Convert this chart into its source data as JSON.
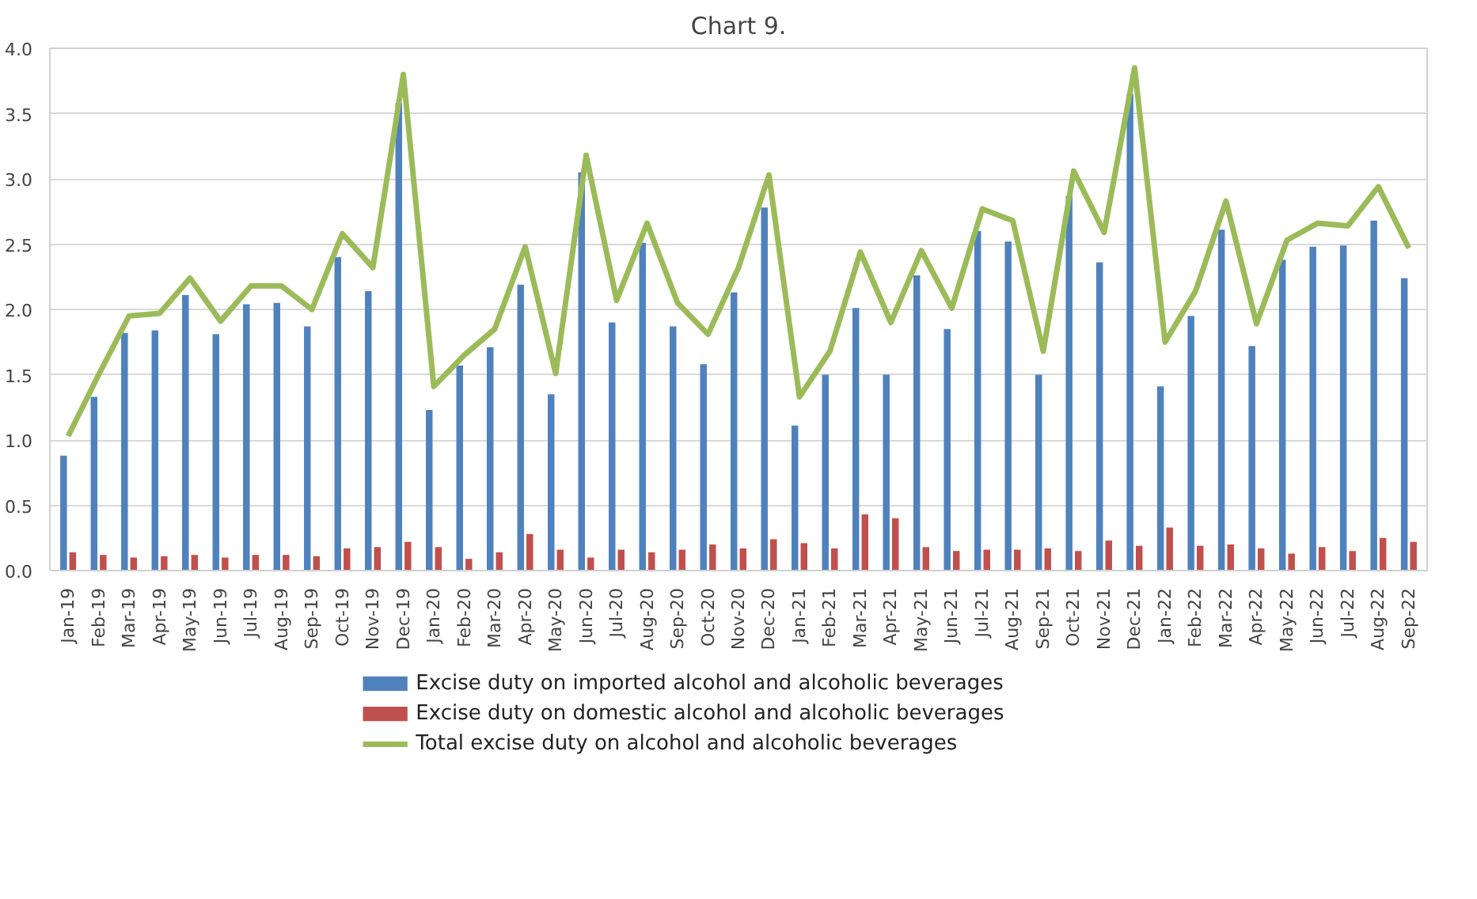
{
  "chart_data": {
    "type": "bar",
    "title": "Chart 9.",
    "categories": [
      "Jan-19",
      "Feb-19",
      "Mar-19",
      "Apr-19",
      "May-19",
      "Jun-19",
      "Jul-19",
      "Aug-19",
      "Sep-19",
      "Oct-19",
      "Nov-19",
      "Dec-19",
      "Jan-20",
      "Feb-20",
      "Mar-20",
      "Apr-20",
      "May-20",
      "Jun-20",
      "Jul-20",
      "Aug-20",
      "Sep-20",
      "Oct-20",
      "Nov-20",
      "Dec-20",
      "Jan-21",
      "Feb-21",
      "Mar-21",
      "Apr-21",
      "May-21",
      "Jun-21",
      "Jul-21",
      "Aug-21",
      "Sep-21",
      "Oct-21",
      "Nov-21",
      "Dec-21",
      "Jan-22",
      "Feb-22",
      "Mar-22",
      "Apr-22",
      "May-22",
      "Jun-22",
      "Jul-22",
      "Aug-22",
      "Sep-22"
    ],
    "series": [
      {
        "name": "Excise duty on imported alcohol and alcoholic beverages",
        "color": "#4f81bd",
        "type": "bar",
        "values": [
          0.88,
          1.33,
          1.82,
          1.84,
          2.11,
          1.81,
          2.04,
          2.05,
          1.87,
          2.4,
          2.14,
          3.58,
          1.23,
          1.57,
          1.71,
          2.19,
          1.35,
          3.05,
          1.9,
          2.51,
          1.87,
          1.58,
          2.13,
          2.78,
          1.11,
          1.5,
          2.01,
          1.5,
          2.26,
          1.85,
          2.6,
          2.52,
          1.5,
          2.87,
          2.36,
          3.65,
          1.41,
          1.95,
          2.61,
          1.72,
          2.38,
          2.48,
          2.49,
          2.68,
          2.24
        ]
      },
      {
        "name": "Excise duty on domestic alcohol and alcoholic beverages",
        "color": "#c0504d",
        "type": "bar",
        "values": [
          0.14,
          0.12,
          0.1,
          0.11,
          0.12,
          0.1,
          0.12,
          0.12,
          0.11,
          0.17,
          0.18,
          0.22,
          0.18,
          0.09,
          0.14,
          0.28,
          0.16,
          0.1,
          0.16,
          0.14,
          0.16,
          0.2,
          0.17,
          0.24,
          0.21,
          0.17,
          0.43,
          0.4,
          0.18,
          0.15,
          0.16,
          0.16,
          0.17,
          0.15,
          0.23,
          0.19,
          0.33,
          0.19,
          0.2,
          0.17,
          0.13,
          0.18,
          0.15,
          0.25,
          0.22
        ]
      },
      {
        "name": "Total excise duty on alcohol and alcoholic beverages",
        "color": "#9bbb59",
        "type": "line",
        "values": [
          1.03,
          1.5,
          1.95,
          1.97,
          2.24,
          1.91,
          2.18,
          2.18,
          2.0,
          2.58,
          2.32,
          3.8,
          1.41,
          1.65,
          1.85,
          2.48,
          1.51,
          3.18,
          2.07,
          2.66,
          2.05,
          1.81,
          2.32,
          3.03,
          1.33,
          1.68,
          2.44,
          1.9,
          2.45,
          2.01,
          2.77,
          2.68,
          1.68,
          3.06,
          2.59,
          3.85,
          1.75,
          2.14,
          2.83,
          1.89,
          2.53,
          2.66,
          2.64,
          2.94,
          2.47
        ]
      }
    ],
    "ylim": [
      0,
      4
    ],
    "yticks": [
      {
        "value": 0,
        "label": "0.0"
      },
      {
        "value": 0.5,
        "label": "0.5"
      },
      {
        "value": 1,
        "label": "1.0"
      },
      {
        "value": 1.5,
        "label": "1.5"
      },
      {
        "value": 2,
        "label": "2.0"
      },
      {
        "value": 2.5,
        "label": "2.5"
      },
      {
        "value": 3,
        "label": "3.0"
      },
      {
        "value": 3.5,
        "label": "3.5"
      },
      {
        "value": 4,
        "label": "4.0"
      }
    ],
    "grid": "y",
    "legend": "bottom",
    "marker": "none",
    "line_style": "solid"
  }
}
